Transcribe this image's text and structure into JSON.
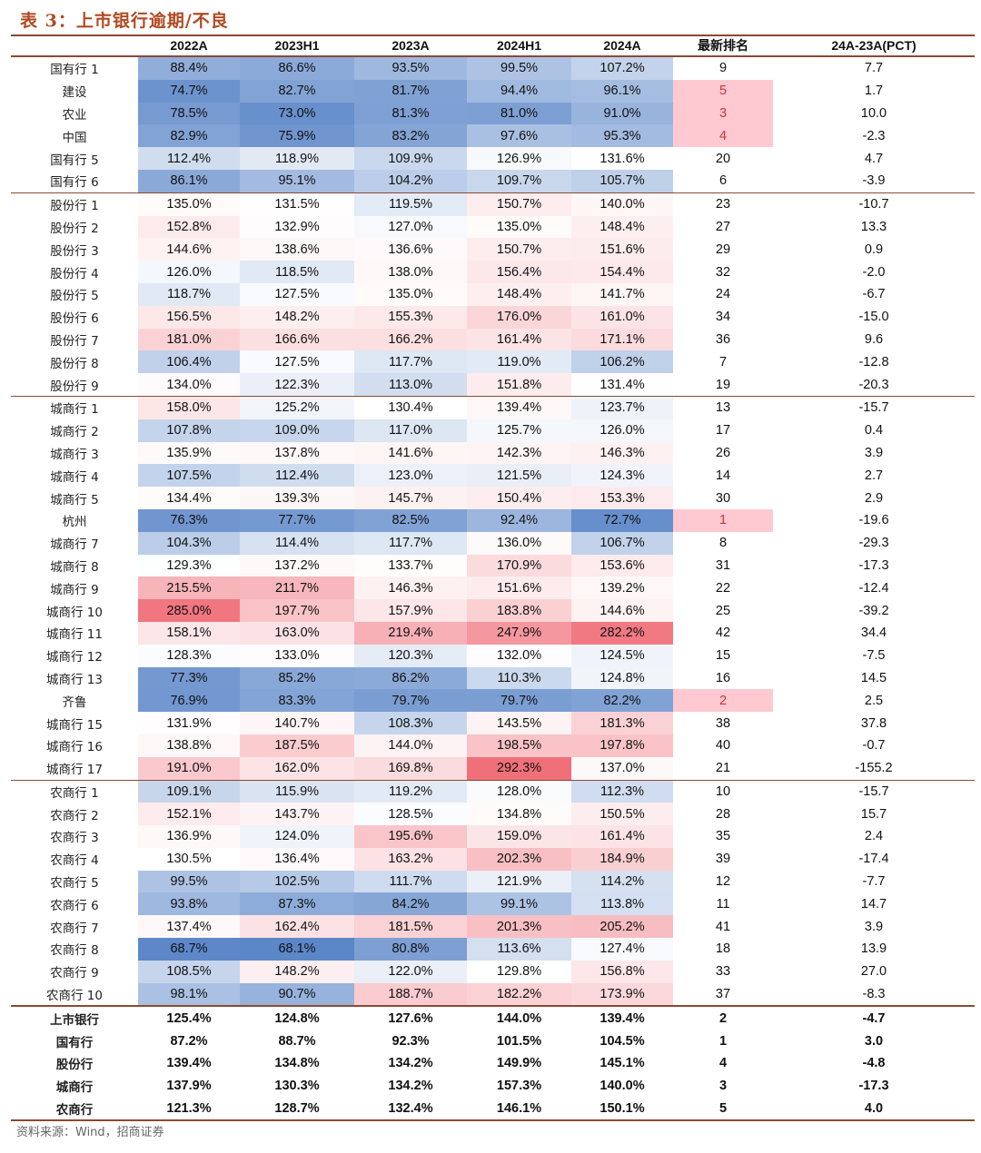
{
  "title": "表 3：上市银行逾期/不良",
  "source": "资料来源：Wind，招商证券",
  "columns": [
    "",
    "2022A",
    "2023H1",
    "2023A",
    "2024H1",
    "2024A",
    "最新排名",
    "24A-23A(PCT)"
  ],
  "groups": [
    {
      "rows": [
        {
          "name": "国有行 1",
          "v": [
            88.4,
            86.6,
            93.5,
            99.5,
            107.2
          ],
          "rank": "9",
          "rank_hl": false,
          "pct": "7.7"
        },
        {
          "name": "建设",
          "v": [
            74.7,
            82.7,
            81.7,
            94.4,
            96.1
          ],
          "rank": "5",
          "rank_hl": true,
          "pct": "1.7"
        },
        {
          "name": "农业",
          "v": [
            78.5,
            73.0,
            81.3,
            81.0,
            91.0
          ],
          "rank": "3",
          "rank_hl": true,
          "pct": "10.0"
        },
        {
          "name": "中国",
          "v": [
            82.9,
            75.9,
            83.2,
            97.6,
            95.3
          ],
          "rank": "4",
          "rank_hl": true,
          "pct": "-2.3"
        },
        {
          "name": "国有行 5",
          "v": [
            112.4,
            118.9,
            109.9,
            126.9,
            131.6
          ],
          "rank": "20",
          "rank_hl": false,
          "pct": "4.7"
        },
        {
          "name": "国有行 6",
          "v": [
            86.1,
            95.1,
            104.2,
            109.7,
            105.7
          ],
          "rank": "6",
          "rank_hl": false,
          "pct": "-3.9"
        }
      ]
    },
    {
      "rows": [
        {
          "name": "股份行 1",
          "v": [
            135.0,
            131.5,
            119.5,
            150.7,
            140.0
          ],
          "rank": "23",
          "rank_hl": false,
          "pct": "-10.7"
        },
        {
          "name": "股份行 2",
          "v": [
            152.8,
            132.9,
            127.0,
            135.0,
            148.4
          ],
          "rank": "27",
          "rank_hl": false,
          "pct": "13.3"
        },
        {
          "name": "股份行 3",
          "v": [
            144.6,
            138.6,
            136.6,
            150.7,
            151.6
          ],
          "rank": "29",
          "rank_hl": false,
          "pct": "0.9"
        },
        {
          "name": "股份行 4",
          "v": [
            126.0,
            118.5,
            138.0,
            156.4,
            154.4
          ],
          "rank": "32",
          "rank_hl": false,
          "pct": "-2.0"
        },
        {
          "name": "股份行 5",
          "v": [
            118.7,
            127.5,
            135.0,
            148.4,
            141.7
          ],
          "rank": "24",
          "rank_hl": false,
          "pct": "-6.7"
        },
        {
          "name": "股份行 6",
          "v": [
            156.5,
            148.2,
            155.3,
            176.0,
            161.0
          ],
          "rank": "34",
          "rank_hl": false,
          "pct": "-15.0"
        },
        {
          "name": "股份行 7",
          "v": [
            181.0,
            166.6,
            166.2,
            161.4,
            171.1
          ],
          "rank": "36",
          "rank_hl": false,
          "pct": "9.6"
        },
        {
          "name": "股份行 8",
          "v": [
            106.4,
            127.5,
            117.7,
            119.0,
            106.2
          ],
          "rank": "7",
          "rank_hl": false,
          "pct": "-12.8"
        },
        {
          "name": "股份行 9",
          "v": [
            134.0,
            122.3,
            113.0,
            151.8,
            131.4
          ],
          "rank": "19",
          "rank_hl": false,
          "pct": "-20.3"
        }
      ]
    },
    {
      "rows": [
        {
          "name": "城商行 1",
          "v": [
            158.0,
            125.2,
            130.4,
            139.4,
            123.7
          ],
          "rank": "13",
          "rank_hl": false,
          "pct": "-15.7"
        },
        {
          "name": "城商行 2",
          "v": [
            107.8,
            109.0,
            117.0,
            125.7,
            126.0
          ],
          "rank": "17",
          "rank_hl": false,
          "pct": "0.4"
        },
        {
          "name": "城商行 3",
          "v": [
            135.9,
            137.8,
            141.6,
            142.3,
            146.3
          ],
          "rank": "26",
          "rank_hl": false,
          "pct": "3.9"
        },
        {
          "name": "城商行 4",
          "v": [
            107.5,
            112.4,
            123.0,
            121.5,
            124.3
          ],
          "rank": "14",
          "rank_hl": false,
          "pct": "2.7"
        },
        {
          "name": "城商行 5",
          "v": [
            134.4,
            139.3,
            145.7,
            150.4,
            153.3
          ],
          "rank": "30",
          "rank_hl": false,
          "pct": "2.9"
        },
        {
          "name": "杭州",
          "v": [
            76.3,
            77.7,
            82.5,
            92.4,
            72.7
          ],
          "rank": "1",
          "rank_hl": true,
          "pct": "-19.6"
        },
        {
          "name": "城商行 7",
          "v": [
            104.3,
            114.4,
            117.7,
            136.0,
            106.7
          ],
          "rank": "8",
          "rank_hl": false,
          "pct": "-29.3"
        },
        {
          "name": "城商行 8",
          "v": [
            129.3,
            137.2,
            133.7,
            170.9,
            153.6
          ],
          "rank": "31",
          "rank_hl": false,
          "pct": "-17.3"
        },
        {
          "name": "城商行 9",
          "v": [
            215.5,
            211.7,
            146.3,
            151.6,
            139.2
          ],
          "rank": "22",
          "rank_hl": false,
          "pct": "-12.4"
        },
        {
          "name": "城商行 10",
          "v": [
            285.0,
            197.7,
            157.9,
            183.8,
            144.6
          ],
          "rank": "25",
          "rank_hl": false,
          "pct": "-39.2"
        },
        {
          "name": "城商行 11",
          "v": [
            158.1,
            163.0,
            219.4,
            247.9,
            282.2
          ],
          "rank": "42",
          "rank_hl": false,
          "pct": "34.4"
        },
        {
          "name": "城商行 12",
          "v": [
            128.3,
            133.0,
            120.3,
            132.0,
            124.5
          ],
          "rank": "15",
          "rank_hl": false,
          "pct": "-7.5"
        },
        {
          "name": "城商行 13",
          "v": [
            77.3,
            85.2,
            86.2,
            110.3,
            124.8
          ],
          "rank": "16",
          "rank_hl": false,
          "pct": "14.5"
        },
        {
          "name": "齐鲁",
          "v": [
            76.9,
            83.3,
            79.7,
            79.7,
            82.2
          ],
          "rank": "2",
          "rank_hl": true,
          "pct": "2.5"
        },
        {
          "name": "城商行 15",
          "v": [
            131.9,
            140.7,
            108.3,
            143.5,
            181.3
          ],
          "rank": "38",
          "rank_hl": false,
          "pct": "37.8"
        },
        {
          "name": "城商行 16",
          "v": [
            138.8,
            187.5,
            144.0,
            198.5,
            197.8
          ],
          "rank": "40",
          "rank_hl": false,
          "pct": "-0.7"
        },
        {
          "name": "城商行 17",
          "v": [
            191.0,
            162.0,
            169.8,
            292.3,
            137.0
          ],
          "rank": "21",
          "rank_hl": false,
          "pct": "-155.2"
        }
      ]
    },
    {
      "rows": [
        {
          "name": "农商行 1",
          "v": [
            109.1,
            115.9,
            119.2,
            128.0,
            112.3
          ],
          "rank": "10",
          "rank_hl": false,
          "pct": "-15.7"
        },
        {
          "name": "农商行 2",
          "v": [
            152.1,
            143.7,
            128.5,
            134.8,
            150.5
          ],
          "rank": "28",
          "rank_hl": false,
          "pct": "15.7"
        },
        {
          "name": "农商行 3",
          "v": [
            136.9,
            124.0,
            195.6,
            159.0,
            161.4
          ],
          "rank": "35",
          "rank_hl": false,
          "pct": "2.4"
        },
        {
          "name": "农商行 4",
          "v": [
            130.5,
            136.4,
            163.2,
            202.3,
            184.9
          ],
          "rank": "39",
          "rank_hl": false,
          "pct": "-17.4"
        },
        {
          "name": "农商行 5",
          "v": [
            99.5,
            102.5,
            111.7,
            121.9,
            114.2
          ],
          "rank": "12",
          "rank_hl": false,
          "pct": "-7.7"
        },
        {
          "name": "农商行 6",
          "v": [
            93.8,
            87.3,
            84.2,
            99.1,
            113.8
          ],
          "rank": "11",
          "rank_hl": false,
          "pct": "14.7"
        },
        {
          "name": "农商行 7",
          "v": [
            137.4,
            162.4,
            181.5,
            201.3,
            205.2
          ],
          "rank": "41",
          "rank_hl": false,
          "pct": "3.9"
        },
        {
          "name": "农商行 8",
          "v": [
            68.7,
            68.1,
            80.8,
            113.6,
            127.4
          ],
          "rank": "18",
          "rank_hl": false,
          "pct": "13.9"
        },
        {
          "name": "农商行 9",
          "v": [
            108.5,
            148.2,
            122.0,
            129.8,
            156.8
          ],
          "rank": "33",
          "rank_hl": false,
          "pct": "27.0"
        },
        {
          "name": "农商行 10",
          "v": [
            98.1,
            90.7,
            188.7,
            182.2,
            173.9
          ],
          "rank": "37",
          "rank_hl": false,
          "pct": "-8.3"
        }
      ]
    }
  ],
  "summary": [
    {
      "name": "上市银行",
      "v": [
        125.4,
        124.8,
        127.6,
        144.0,
        139.4
      ],
      "rank": "2",
      "pct": "-4.7"
    },
    {
      "name": "国有行",
      "v": [
        87.2,
        88.7,
        92.3,
        101.5,
        104.5
      ],
      "rank": "1",
      "pct": "3.0"
    },
    {
      "name": "股份行",
      "v": [
        139.4,
        134.8,
        134.2,
        149.9,
        145.1
      ],
      "rank": "4",
      "pct": "-4.8"
    },
    {
      "name": "城商行",
      "v": [
        137.9,
        130.3,
        134.2,
        157.3,
        140.0
      ],
      "rank": "3",
      "pct": "-17.3"
    },
    {
      "name": "农商行",
      "v": [
        121.3,
        128.7,
        132.4,
        146.1,
        150.1
      ],
      "rank": "5",
      "pct": "4.0"
    }
  ],
  "colors": {
    "low": "#5b86c8",
    "mid": "#ffffff",
    "high": "#f0707a",
    "rank_highlight": "#ffc9d1",
    "rule": "#8a4a32",
    "title": "#b04a22"
  }
}
